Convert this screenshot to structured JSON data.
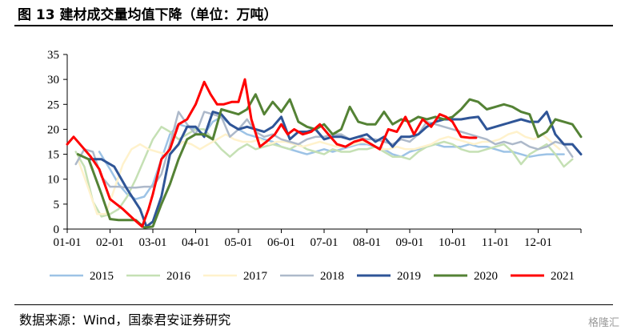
{
  "header": {
    "title": "图 13 建材成交量均值下降（单位：万吨）"
  },
  "footer": {
    "source": "数据来源：Wind，国泰君安证券研究",
    "watermark": "格隆汇"
  },
  "chart_data": {
    "type": "line",
    "title": "建材成交量均值下降",
    "ylim": [
      0,
      35
    ],
    "yticks": [
      "0",
      "5",
      "10",
      "15",
      "20",
      "25",
      "30",
      "35"
    ],
    "xlim": [
      1,
      13
    ],
    "xticks": [
      "01-01",
      "02-01",
      "03-01",
      "04-01",
      "05-01",
      "06-01",
      "07-01",
      "08-01",
      "09-01",
      "10-01",
      "11-01",
      "12-01"
    ],
    "grid": false,
    "legend": "bottom",
    "series": [
      {
        "name": "2015",
        "color": "#9dc3e6",
        "width": 2.5,
        "x": [
          1.75,
          2.0,
          2.2,
          2.4,
          2.6,
          2.8,
          3.0,
          3.2,
          3.4,
          3.6,
          3.8,
          4.0,
          4.2,
          4.4,
          4.6,
          4.8,
          5.0,
          5.2,
          5.4,
          5.6,
          5.8,
          6.0,
          6.2,
          6.4,
          6.6,
          6.8,
          7.0,
          7.2,
          7.4,
          7.6,
          7.8,
          8.0,
          8.2,
          8.4,
          8.6,
          8.8,
          9.0,
          9.2,
          9.4,
          9.6,
          9.8,
          10.0,
          10.2,
          10.4,
          10.6,
          10.8,
          11.0,
          11.2,
          11.4,
          11.6,
          11.8,
          12.0,
          12.2,
          12.4,
          12.6
        ],
        "y": [
          15.5,
          12.0,
          9.0,
          7.0,
          6.0,
          6.5,
          9.0,
          14.0,
          19.0,
          21.0,
          20.5,
          20.0,
          19.0,
          21.5,
          22.5,
          21.0,
          20.0,
          19.0,
          18.5,
          18.0,
          17.5,
          16.5,
          16.0,
          15.5,
          15.0,
          15.5,
          16.0,
          15.5,
          16.0,
          16.5,
          17.0,
          17.0,
          16.5,
          16.0,
          15.0,
          14.5,
          15.5,
          16.0,
          16.5,
          17.0,
          16.5,
          16.5,
          16.5,
          17.0,
          16.5,
          16.5,
          16.0,
          15.5,
          15.5,
          15.0,
          14.5,
          14.8,
          15.0,
          15.0,
          15.0
        ]
      },
      {
        "name": "2016",
        "color": "#c5e0b4",
        "width": 2.5,
        "x": [
          1.2,
          1.4,
          1.6,
          1.8,
          2.0,
          2.2,
          2.4,
          2.6,
          2.8,
          3.0,
          3.2,
          3.4,
          3.6,
          3.8,
          4.0,
          4.2,
          4.4,
          4.6,
          4.8,
          5.0,
          5.2,
          5.4,
          5.6,
          5.8,
          6.0,
          6.2,
          6.4,
          6.6,
          6.8,
          7.0,
          7.2,
          7.4,
          7.6,
          7.8,
          8.0,
          8.2,
          8.4,
          8.6,
          8.8,
          9.0,
          9.2,
          9.4,
          9.6,
          9.8,
          10.0,
          10.2,
          10.4,
          10.6,
          10.8,
          11.0,
          11.2,
          11.4,
          11.6,
          11.8,
          12.0,
          12.2,
          12.4,
          12.6,
          12.8
        ],
        "y": [
          15.5,
          12.5,
          5.5,
          2.5,
          3.0,
          4.0,
          6.5,
          10.0,
          14.0,
          18.0,
          20.5,
          19.5,
          18.0,
          19.0,
          20.0,
          20.0,
          18.0,
          16.0,
          14.5,
          16.0,
          17.0,
          16.0,
          16.5,
          17.0,
          16.5,
          16.0,
          17.0,
          16.0,
          15.5,
          15.0,
          16.0,
          15.5,
          15.5,
          16.0,
          16.0,
          16.5,
          15.5,
          14.5,
          14.5,
          14.0,
          15.5,
          16.5,
          17.0,
          17.5,
          17.0,
          16.0,
          15.5,
          15.5,
          16.0,
          16.5,
          17.0,
          15.5,
          13.0,
          15.0,
          16.0,
          17.0,
          15.0,
          12.5,
          14.0
        ]
      },
      {
        "name": "2017",
        "color": "#fff2cc",
        "width": 2.5,
        "x": [
          1.25,
          1.5,
          1.7,
          1.9,
          2.1,
          2.3,
          2.5,
          2.7,
          2.9,
          3.1,
          3.3,
          3.5,
          3.7,
          3.9,
          4.1,
          4.3,
          4.5,
          4.7,
          4.9,
          5.1,
          5.3,
          5.5,
          5.7,
          5.9,
          6.1,
          6.3,
          6.5,
          6.7,
          6.9,
          7.1,
          7.3,
          7.5,
          7.7,
          7.9,
          8.1,
          8.3,
          8.5,
          8.7,
          8.9,
          9.1,
          9.3,
          9.5,
          9.7,
          9.9,
          10.1,
          10.3,
          10.5,
          10.7,
          10.9,
          11.1,
          11.3,
          11.5,
          11.7,
          11.9,
          12.1,
          12.3,
          12.5
        ],
        "y": [
          14.0,
          8.0,
          3.0,
          3.0,
          8.0,
          13.0,
          16.0,
          17.0,
          16.0,
          15.5,
          15.0,
          16.0,
          17.5,
          17.0,
          16.0,
          17.0,
          18.0,
          19.0,
          18.0,
          17.5,
          17.5,
          18.0,
          17.0,
          17.5,
          17.5,
          17.0,
          16.5,
          17.0,
          17.5,
          17.0,
          16.5,
          16.5,
          17.0,
          17.5,
          17.0,
          16.0,
          16.0,
          16.5,
          16.0,
          16.0,
          16.5,
          17.0,
          18.0,
          18.5,
          18.0,
          17.5,
          17.0,
          17.5,
          17.5,
          18.0,
          19.0,
          19.5,
          18.5,
          18.0,
          19.0,
          17.5,
          16.0
        ]
      },
      {
        "name": "2018",
        "color": "#adb9ca",
        "width": 2.5,
        "x": [
          1.2,
          1.4,
          1.6,
          1.8,
          2.0,
          2.2,
          2.4,
          2.6,
          2.8,
          3.0,
          3.2,
          3.4,
          3.6,
          3.8,
          4.0,
          4.2,
          4.4,
          4.6,
          4.8,
          5.0,
          5.2,
          5.4,
          5.6,
          5.8,
          6.0,
          6.2,
          6.4,
          6.6,
          6.8,
          7.0,
          7.2,
          7.4,
          7.6,
          7.8,
          8.0,
          8.2,
          8.4,
          8.6,
          8.8,
          9.0,
          9.2,
          9.4,
          9.6,
          9.8,
          10.0,
          10.2,
          10.4,
          10.6,
          10.8,
          11.0,
          11.2,
          11.4,
          11.6,
          11.8,
          12.0,
          12.2,
          12.4,
          12.6,
          12.8
        ],
        "y": [
          13.0,
          16.0,
          15.5,
          10.5,
          8.5,
          8.5,
          8.3,
          8.3,
          8.5,
          8.5,
          11.0,
          17.0,
          23.5,
          21.0,
          19.0,
          23.5,
          23.0,
          22.5,
          18.5,
          20.0,
          22.0,
          19.5,
          18.5,
          19.0,
          18.0,
          17.5,
          17.0,
          18.0,
          18.5,
          18.5,
          19.0,
          19.0,
          18.0,
          18.5,
          18.0,
          18.0,
          17.5,
          17.0,
          18.0,
          17.5,
          19.0,
          21.5,
          21.0,
          20.5,
          20.0,
          19.5,
          19.0,
          18.5,
          18.0,
          17.0,
          17.5,
          17.0,
          17.5,
          16.5,
          16.0,
          16.5,
          17.5,
          17.0,
          14.5
        ]
      },
      {
        "name": "2019",
        "color": "#2f5597",
        "width": 3,
        "x": [
          1.5,
          1.8,
          2.1,
          2.4,
          2.7,
          2.85,
          3.0,
          3.2,
          3.4,
          3.6,
          3.8,
          4.0,
          4.2,
          4.4,
          4.6,
          4.8,
          5.0,
          5.2,
          5.4,
          5.6,
          5.8,
          6.0,
          6.2,
          6.4,
          6.6,
          6.8,
          7.0,
          7.2,
          7.4,
          7.6,
          7.8,
          8.0,
          8.2,
          8.4,
          8.6,
          8.8,
          9.0,
          9.2,
          9.4,
          9.6,
          9.8,
          10.0,
          10.2,
          10.4,
          10.6,
          10.8,
          11.0,
          11.2,
          11.4,
          11.6,
          11.8,
          12.0,
          12.2,
          12.4,
          12.6,
          12.8,
          13.0
        ],
        "y": [
          14.0,
          14.0,
          12.5,
          8.0,
          4.0,
          0.5,
          1.5,
          6.5,
          15.0,
          17.0,
          20.5,
          20.5,
          18.5,
          23.5,
          23.0,
          21.0,
          20.0,
          20.5,
          20.0,
          19.5,
          20.5,
          22.5,
          18.0,
          19.5,
          19.5,
          20.0,
          18.0,
          18.5,
          18.5,
          18.0,
          18.5,
          19.0,
          17.5,
          18.5,
          16.5,
          18.5,
          18.5,
          19.0,
          20.5,
          21.5,
          22.0,
          22.0,
          22.0,
          22.3,
          22.5,
          20.0,
          20.5,
          21.0,
          21.5,
          22.0,
          21.5,
          21.5,
          23.5,
          19.0,
          17.0,
          17.0,
          15.0
        ]
      },
      {
        "name": "2020",
        "color": "#548235",
        "width": 3,
        "x": [
          1.25,
          1.5,
          1.8,
          2.0,
          2.2,
          2.4,
          2.6,
          2.8,
          3.0,
          3.2,
          3.4,
          3.6,
          3.8,
          4.0,
          4.2,
          4.4,
          4.6,
          4.8,
          5.0,
          5.2,
          5.4,
          5.6,
          5.8,
          6.0,
          6.2,
          6.4,
          6.6,
          6.8,
          7.0,
          7.2,
          7.4,
          7.6,
          7.8,
          8.0,
          8.2,
          8.4,
          8.6,
          8.8,
          9.0,
          9.2,
          9.4,
          9.6,
          9.8,
          10.0,
          10.2,
          10.4,
          10.6,
          10.8,
          11.0,
          11.2,
          11.4,
          11.6,
          11.8,
          12.0,
          12.2,
          12.4,
          12.6,
          12.8,
          13.0
        ],
        "y": [
          15.0,
          14.0,
          7.0,
          2.0,
          1.8,
          1.8,
          1.8,
          0.3,
          0.5,
          5.0,
          9.0,
          14.0,
          18.0,
          19.0,
          19.0,
          18.0,
          24.0,
          23.5,
          23.0,
          24.0,
          27.0,
          23.0,
          25.5,
          23.5,
          26.0,
          21.5,
          20.5,
          20.0,
          21.0,
          19.0,
          20.0,
          24.5,
          21.5,
          21.0,
          21.0,
          23.5,
          21.0,
          22.0,
          21.5,
          22.5,
          22.0,
          22.5,
          22.0,
          22.5,
          24.0,
          26.0,
          25.5,
          24.0,
          24.5,
          25.0,
          24.5,
          23.5,
          23.0,
          18.5,
          19.5,
          22.0,
          21.5,
          21.0,
          18.5
        ]
      },
      {
        "name": "2021",
        "color": "#ff0000",
        "width": 3,
        "x": [
          1.0,
          1.15,
          1.35,
          1.55,
          1.75,
          2.0,
          2.3,
          2.55,
          2.75,
          2.9,
          3.0,
          3.2,
          3.4,
          3.6,
          3.8,
          4.0,
          4.2,
          4.35,
          4.5,
          4.65,
          4.85,
          5.0,
          5.15,
          5.3,
          5.5,
          5.65,
          5.85,
          6.0,
          6.15,
          6.3,
          6.5,
          6.7,
          6.9,
          7.1,
          7.3,
          7.5,
          7.7,
          7.9,
          8.1,
          8.3,
          8.5,
          8.7,
          8.9,
          9.1,
          9.3,
          9.5,
          9.7,
          9.85,
          10.0,
          10.2,
          10.4,
          10.55
        ],
        "y": [
          17.0,
          18.5,
          16.5,
          14.5,
          12.0,
          6.0,
          4.0,
          2.0,
          0.5,
          4.0,
          7.0,
          14.0,
          16.0,
          21.0,
          22.0,
          25.0,
          29.5,
          27.0,
          25.0,
          25.0,
          25.5,
          25.5,
          30.0,
          22.0,
          16.5,
          17.5,
          19.0,
          21.0,
          19.0,
          20.0,
          19.0,
          19.5,
          21.0,
          19.0,
          17.0,
          16.5,
          17.5,
          18.0,
          17.0,
          16.0,
          20.0,
          19.5,
          22.5,
          19.0,
          22.0,
          20.5,
          23.0,
          22.5,
          21.5,
          18.5,
          18.3,
          18.3
        ]
      }
    ]
  }
}
